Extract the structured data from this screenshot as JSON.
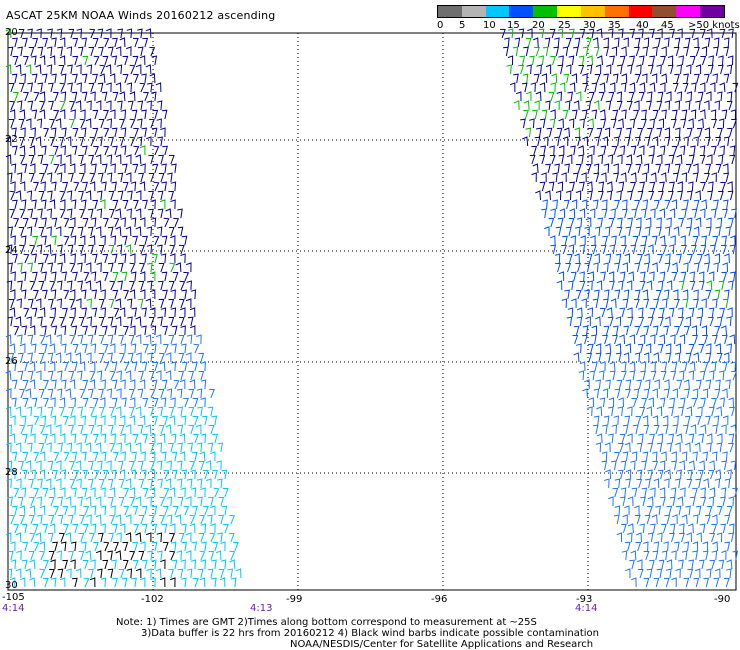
{
  "title": "ASCAT 25KM NOAA Winds 20160212 ascending",
  "legend": {
    "colors": [
      "#6e6e6e",
      "#b4b4b4",
      "#00c8ff",
      "#0050ff",
      "#00c000",
      "#ffff00",
      "#ffc000",
      "#ff7000",
      "#ff0000",
      "#905030",
      "#ff00ff",
      "#7000a0"
    ],
    "labels": [
      "0",
      "5",
      "10",
      "15",
      "20",
      "25",
      "30",
      "35",
      "40",
      "45",
      ">50 knots"
    ],
    "unit": "knots"
  },
  "axes": {
    "lat_labels": [
      "20",
      "22",
      "24",
      "26",
      "28",
      "30"
    ],
    "lon_labels": [
      "-105",
      "-102",
      "-99",
      "-96",
      "-93",
      "-90"
    ]
  },
  "times": [
    "4:14",
    "4:13",
    "4:14"
  ],
  "notes": [
    "Note: 1) Times are GMT 2)Times along bottom correspond to measurement at ~25S",
    "3)Data buffer is 22 hrs from 20160212 4) Black wind barbs indicate possible contamination",
    "NOAA/NESDIS/Center for Satellite Applications and Research"
  ],
  "palette": {
    "navy": "#0000a0",
    "blue": "#0050ff",
    "mid_blue": "#1e78ff",
    "cyan": "#00c8ff",
    "green": "#00c000",
    "black": "#000000"
  }
}
